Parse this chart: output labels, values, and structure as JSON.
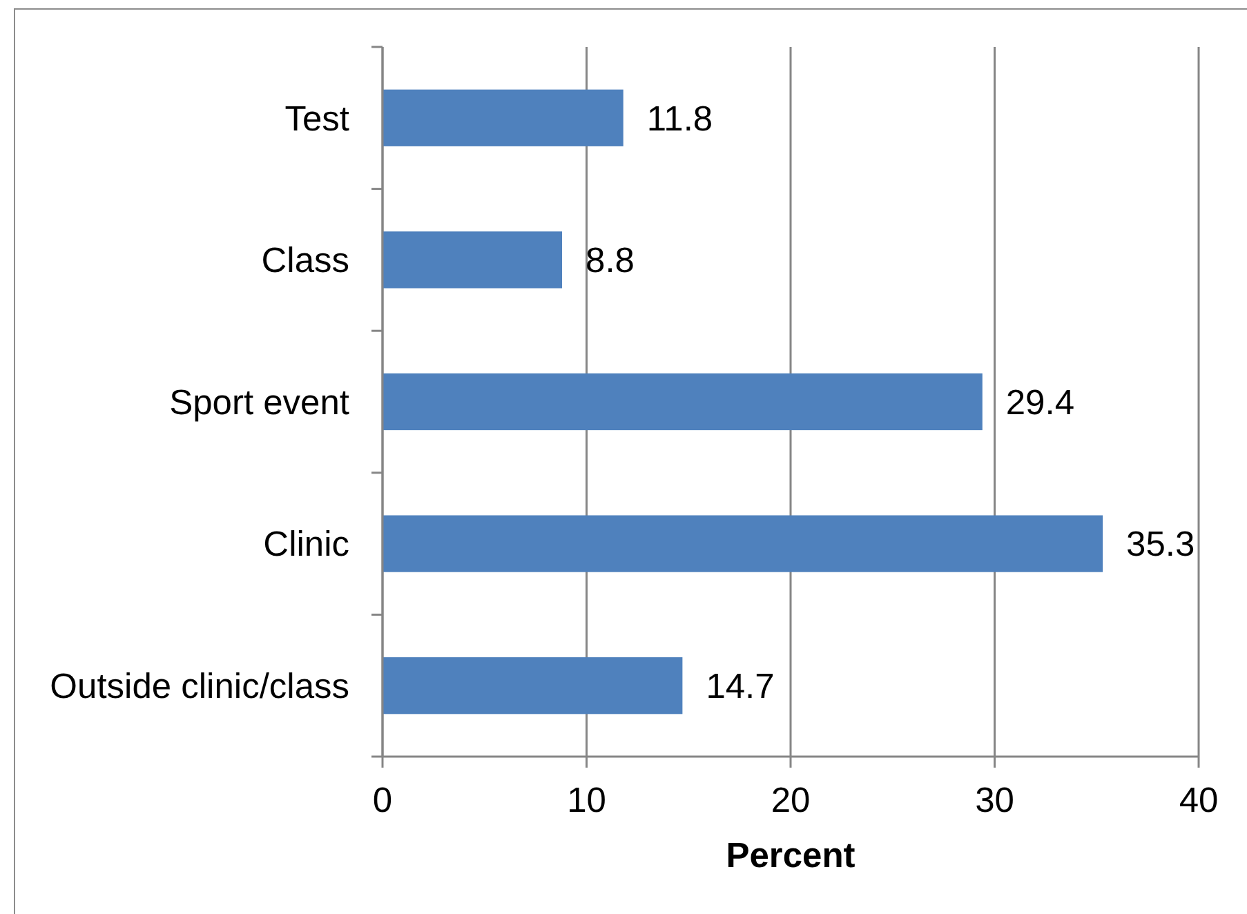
{
  "chart_data": {
    "type": "bar",
    "orientation": "horizontal",
    "categories": [
      "Test",
      "Class",
      "Sport event",
      "Clinic",
      "Outside clinic/class"
    ],
    "values": [
      11.8,
      8.8,
      29.4,
      35.3,
      14.7
    ],
    "color": "#4f81bd",
    "xlabel": "Percent",
    "xlim": [
      0,
      40
    ],
    "xticks": [
      0,
      10,
      20,
      30,
      40
    ],
    "grid": "x",
    "data_labels": true
  }
}
